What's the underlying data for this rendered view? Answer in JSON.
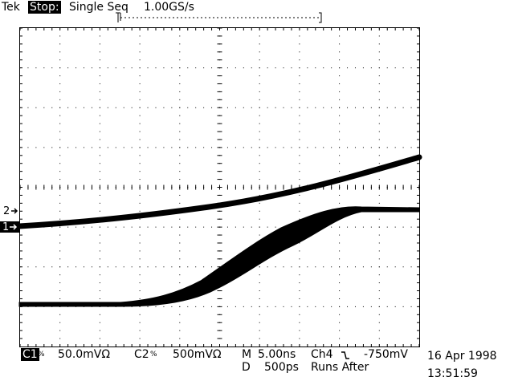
{
  "header": {
    "brand": "Tek",
    "state": "Stop:",
    "mode": "Single Seq",
    "sample_rate": "1.00GS/s"
  },
  "markers": {
    "ch2": "2",
    "ch1": "1"
  },
  "footer": {
    "ch1_label": "C1",
    "ch1_scale": "50.0mVΩ",
    "ch2_label": "C2",
    "ch2_scale": "500mVΩ",
    "m_label": "M",
    "m_value": "5.00ns",
    "d_label": "D",
    "d_value": "500ps",
    "trigger_src": "Ch4",
    "trigger_level": "-750mV",
    "runs_after": "Runs After",
    "date": "16 Apr 1998",
    "time": "13:51:59"
  },
  "colors": {
    "trace": "#000000",
    "background": "#ffffff"
  }
}
